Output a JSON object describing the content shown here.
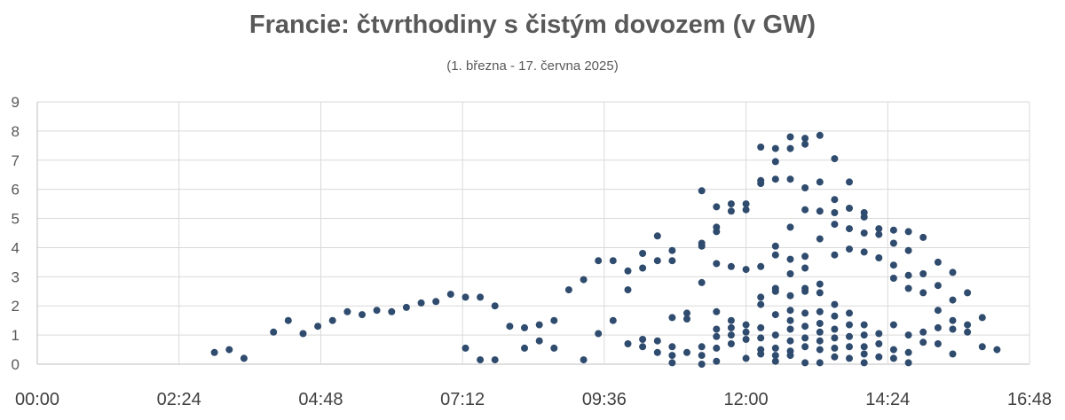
{
  "chart_data": {
    "type": "scatter",
    "title": "Francie: čtvrthodiny s čistým dovozem (v GW)",
    "subtitle": "(1. března - 17. června 2025)",
    "xlabel": "",
    "ylabel": "",
    "x_ticks": [
      "00:00",
      "02:24",
      "04:48",
      "07:12",
      "09:36",
      "12:00",
      "14:24",
      "16:48"
    ],
    "y_ticks": [
      "0",
      "1",
      "2",
      "3",
      "4",
      "5",
      "6",
      "7",
      "8",
      "9"
    ],
    "xlim": [
      "00:00",
      "16:48"
    ],
    "ylim": [
      0,
      9
    ],
    "grid": true,
    "legend": "none",
    "colors": {
      "points": "#2f4b6e",
      "grid": "#d9d9d9",
      "text": "#595959"
    },
    "series": [
      {
        "points": [
          [
            "03:00",
            0.4
          ],
          [
            "03:15",
            0.5
          ],
          [
            "03:30",
            0.2
          ],
          [
            "04:00",
            1.1
          ],
          [
            "04:15",
            1.5
          ],
          [
            "04:30",
            1.05
          ],
          [
            "04:45",
            1.3
          ],
          [
            "05:00",
            1.5
          ],
          [
            "05:15",
            1.8
          ],
          [
            "05:30",
            1.7
          ],
          [
            "05:45",
            1.85
          ],
          [
            "06:00",
            1.8
          ],
          [
            "06:15",
            1.95
          ],
          [
            "06:30",
            2.1
          ],
          [
            "06:45",
            2.15
          ],
          [
            "07:00",
            2.4
          ],
          [
            "07:15",
            2.3
          ],
          [
            "07:30",
            2.3
          ],
          [
            "07:45",
            2.0
          ],
          [
            "07:15",
            0.55
          ],
          [
            "07:30",
            0.15
          ],
          [
            "07:45",
            0.15
          ],
          [
            "08:00",
            1.3
          ],
          [
            "08:15",
            1.25
          ],
          [
            "08:15",
            0.55
          ],
          [
            "08:30",
            1.35
          ],
          [
            "08:30",
            0.8
          ],
          [
            "08:45",
            1.5
          ],
          [
            "08:45",
            0.55
          ],
          [
            "09:00",
            2.55
          ],
          [
            "09:15",
            2.9
          ],
          [
            "09:15",
            0.15
          ],
          [
            "09:30",
            3.55
          ],
          [
            "09:30",
            1.05
          ],
          [
            "09:45",
            3.55
          ],
          [
            "09:45",
            1.5
          ],
          [
            "10:00",
            3.2
          ],
          [
            "10:00",
            2.55
          ],
          [
            "10:00",
            0.7
          ],
          [
            "10:15",
            3.8
          ],
          [
            "10:15",
            3.3
          ],
          [
            "10:15",
            0.85
          ],
          [
            "10:15",
            0.6
          ],
          [
            "10:30",
            4.4
          ],
          [
            "10:30",
            3.55
          ],
          [
            "10:30",
            0.8
          ],
          [
            "10:30",
            0.4
          ],
          [
            "10:45",
            3.9
          ],
          [
            "10:45",
            3.55
          ],
          [
            "10:45",
            1.6
          ],
          [
            "10:45",
            0.6
          ],
          [
            "10:45",
            0.3
          ],
          [
            "10:45",
            0.05
          ],
          [
            "11:00",
            1.75
          ],
          [
            "11:00",
            1.55
          ],
          [
            "11:00",
            0.4
          ],
          [
            "11:15",
            5.95
          ],
          [
            "11:15",
            4.05
          ],
          [
            "11:15",
            4.15
          ],
          [
            "11:15",
            2.8
          ],
          [
            "11:15",
            0.6
          ],
          [
            "11:15",
            0.3
          ],
          [
            "11:15",
            0.0
          ],
          [
            "11:30",
            5.4
          ],
          [
            "11:30",
            4.55
          ],
          [
            "11:30",
            4.7
          ],
          [
            "11:30",
            3.45
          ],
          [
            "11:30",
            1.8
          ],
          [
            "11:30",
            1.2
          ],
          [
            "11:30",
            0.95
          ],
          [
            "11:30",
            0.55
          ],
          [
            "11:30",
            0.1
          ],
          [
            "11:45",
            5.5
          ],
          [
            "11:45",
            5.25
          ],
          [
            "11:45",
            3.35
          ],
          [
            "11:45",
            1.5
          ],
          [
            "11:45",
            1.25
          ],
          [
            "11:45",
            1.0
          ],
          [
            "11:45",
            0.7
          ],
          [
            "12:00",
            5.5
          ],
          [
            "12:00",
            5.3
          ],
          [
            "12:00",
            3.25
          ],
          [
            "12:00",
            1.35
          ],
          [
            "12:00",
            1.1
          ],
          [
            "12:00",
            0.85
          ],
          [
            "12:00",
            0.2
          ],
          [
            "12:15",
            7.45
          ],
          [
            "12:15",
            6.3
          ],
          [
            "12:15",
            6.2
          ],
          [
            "12:15",
            3.35
          ],
          [
            "12:15",
            2.3
          ],
          [
            "12:15",
            2.05
          ],
          [
            "12:15",
            1.25
          ],
          [
            "12:15",
            0.9
          ],
          [
            "12:15",
            0.5
          ],
          [
            "12:15",
            0.35
          ],
          [
            "12:30",
            7.4
          ],
          [
            "12:30",
            6.95
          ],
          [
            "12:30",
            6.35
          ],
          [
            "12:30",
            4.05
          ],
          [
            "12:30",
            3.75
          ],
          [
            "12:30",
            2.6
          ],
          [
            "12:30",
            2.5
          ],
          [
            "12:30",
            1.7
          ],
          [
            "12:30",
            1.0
          ],
          [
            "12:30",
            0.55
          ],
          [
            "12:30",
            0.3
          ],
          [
            "12:30",
            0.1
          ],
          [
            "12:45",
            7.8
          ],
          [
            "12:45",
            7.4
          ],
          [
            "12:45",
            6.35
          ],
          [
            "12:45",
            4.7
          ],
          [
            "12:45",
            3.6
          ],
          [
            "12:45",
            3.1
          ],
          [
            "12:45",
            2.35
          ],
          [
            "12:45",
            1.85
          ],
          [
            "12:45",
            1.5
          ],
          [
            "12:45",
            1.2
          ],
          [
            "12:45",
            0.8
          ],
          [
            "12:45",
            0.45
          ],
          [
            "12:45",
            0.3
          ],
          [
            "13:00",
            7.75
          ],
          [
            "13:00",
            7.55
          ],
          [
            "13:00",
            6.05
          ],
          [
            "13:00",
            5.3
          ],
          [
            "13:00",
            3.7
          ],
          [
            "13:00",
            3.3
          ],
          [
            "13:00",
            2.6
          ],
          [
            "13:00",
            2.5
          ],
          [
            "13:00",
            1.75
          ],
          [
            "13:00",
            1.3
          ],
          [
            "13:00",
            0.9
          ],
          [
            "13:00",
            0.6
          ],
          [
            "13:00",
            0.05
          ],
          [
            "13:15",
            7.85
          ],
          [
            "13:15",
            6.25
          ],
          [
            "13:15",
            5.25
          ],
          [
            "13:15",
            4.3
          ],
          [
            "13:15",
            2.75
          ],
          [
            "13:15",
            2.45
          ],
          [
            "13:15",
            1.8
          ],
          [
            "13:15",
            1.4
          ],
          [
            "13:15",
            1.1
          ],
          [
            "13:15",
            0.8
          ],
          [
            "13:15",
            0.5
          ],
          [
            "13:15",
            0.05
          ],
          [
            "13:30",
            7.05
          ],
          [
            "13:30",
            5.65
          ],
          [
            "13:30",
            5.2
          ],
          [
            "13:30",
            4.8
          ],
          [
            "13:30",
            3.75
          ],
          [
            "13:30",
            2.05
          ],
          [
            "13:30",
            1.65
          ],
          [
            "13:30",
            1.2
          ],
          [
            "13:30",
            0.9
          ],
          [
            "13:30",
            0.55
          ],
          [
            "13:30",
            0.25
          ],
          [
            "13:45",
            6.25
          ],
          [
            "13:45",
            5.35
          ],
          [
            "13:45",
            4.65
          ],
          [
            "13:45",
            3.95
          ],
          [
            "13:45",
            1.75
          ],
          [
            "13:45",
            1.35
          ],
          [
            "13:45",
            0.95
          ],
          [
            "13:45",
            0.6
          ],
          [
            "13:45",
            0.2
          ],
          [
            "14:00",
            5.2
          ],
          [
            "14:00",
            5.05
          ],
          [
            "14:00",
            4.5
          ],
          [
            "14:00",
            3.85
          ],
          [
            "14:00",
            1.35
          ],
          [
            "14:00",
            1.0
          ],
          [
            "14:00",
            0.6
          ],
          [
            "14:00",
            0.35
          ],
          [
            "14:00",
            0.05
          ],
          [
            "14:15",
            4.65
          ],
          [
            "14:15",
            4.45
          ],
          [
            "14:15",
            3.65
          ],
          [
            "14:15",
            1.05
          ],
          [
            "14:15",
            0.7
          ],
          [
            "14:15",
            0.25
          ],
          [
            "14:30",
            4.6
          ],
          [
            "14:30",
            4.15
          ],
          [
            "14:30",
            3.4
          ],
          [
            "14:30",
            2.95
          ],
          [
            "14:30",
            1.35
          ],
          [
            "14:30",
            0.5
          ],
          [
            "14:30",
            0.2
          ],
          [
            "14:45",
            4.55
          ],
          [
            "14:45",
            3.9
          ],
          [
            "14:45",
            3.05
          ],
          [
            "14:45",
            2.6
          ],
          [
            "14:45",
            1.0
          ],
          [
            "14:45",
            0.4
          ],
          [
            "14:45",
            0.05
          ],
          [
            "15:00",
            4.35
          ],
          [
            "15:00",
            3.1
          ],
          [
            "15:00",
            2.45
          ],
          [
            "15:00",
            1.1
          ],
          [
            "15:00",
            0.75
          ],
          [
            "15:15",
            3.5
          ],
          [
            "15:15",
            2.7
          ],
          [
            "15:15",
            1.85
          ],
          [
            "15:15",
            1.25
          ],
          [
            "15:15",
            0.7
          ],
          [
            "15:30",
            3.15
          ],
          [
            "15:30",
            2.2
          ],
          [
            "15:30",
            1.5
          ],
          [
            "15:30",
            1.2
          ],
          [
            "15:30",
            0.35
          ],
          [
            "15:45",
            2.45
          ],
          [
            "15:45",
            1.35
          ],
          [
            "15:45",
            1.1
          ],
          [
            "16:00",
            1.6
          ],
          [
            "16:00",
            0.6
          ],
          [
            "16:15",
            0.5
          ]
        ]
      }
    ]
  }
}
